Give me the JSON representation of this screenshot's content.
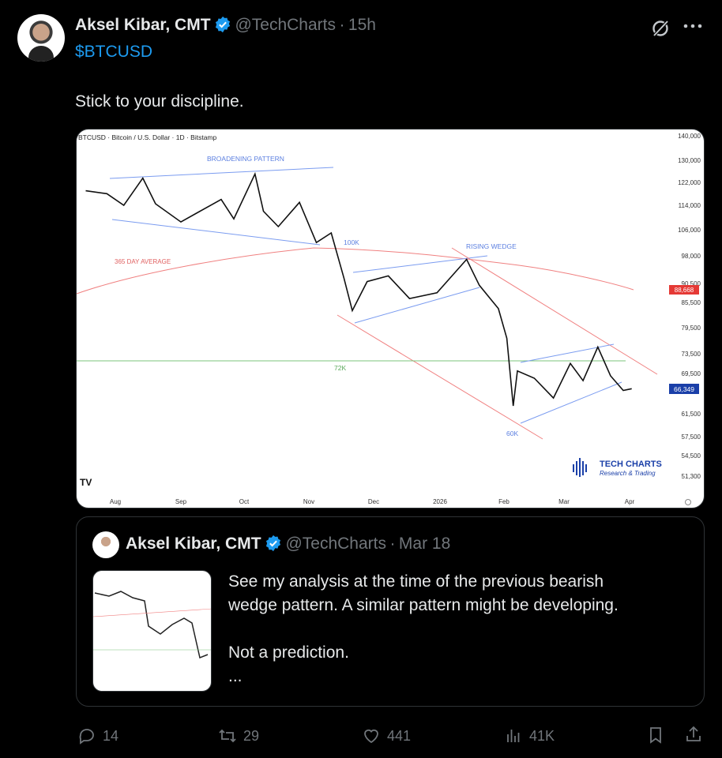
{
  "tweet": {
    "author_name": "Aksel Kibar, CMT",
    "handle": "@TechCharts",
    "time": "15h",
    "cashtag": "$BTCUSD",
    "text": "Stick to your discipline.",
    "verified_color": "#1d9bf0"
  },
  "chart_image": {
    "title": "BTCUSD · Bitcoin / U.S. Dollar · 1D · Bitstamp",
    "annotations": {
      "broadening": "BROADENING PATTERN",
      "k100": "100K",
      "rising_wedge": "RISING WEDGE",
      "ma": "365 DAY AVERAGE",
      "k72": "72K",
      "k60": "60K"
    },
    "price_ticks": [
      "140,000",
      "130,000",
      "122,000",
      "114,000",
      "106,000",
      "98,000",
      "90,500",
      "85,500",
      "79,500",
      "73,500",
      "69,500",
      "61,500",
      "57,500",
      "54,500",
      "51,300"
    ],
    "ma_label": "88,668",
    "last_price": "66,349",
    "months": [
      "Aug",
      "Sep",
      "Oct",
      "Nov",
      "Dec",
      "2026",
      "Feb",
      "Mar",
      "Apr"
    ],
    "logo_title": "TECH CHARTS",
    "logo_subtitle": "Research & Trading",
    "tv_logo": "TV",
    "colors": {
      "ma": "#f08080",
      "pattern": "#7b9cf0",
      "level72": "#7bc47b",
      "ma_badge": "#e53935",
      "price_badge": "#1a3fa8"
    },
    "prices": [
      [
        "2025-07-18",
        119000
      ],
      [
        "2025-07-28",
        118000
      ],
      [
        "2025-08-05",
        114000
      ],
      [
        "2025-08-14",
        123500
      ],
      [
        "2025-08-20",
        114500
      ],
      [
        "2025-09-01",
        108500
      ],
      [
        "2025-09-10",
        112000
      ],
      [
        "2025-09-20",
        116000
      ],
      [
        "2025-09-26",
        109500
      ],
      [
        "2025-10-06",
        125000
      ],
      [
        "2025-10-10",
        112000
      ],
      [
        "2025-10-17",
        107000
      ],
      [
        "2025-10-27",
        115000
      ],
      [
        "2025-11-04",
        102000
      ],
      [
        "2025-11-11",
        105000
      ],
      [
        "2025-11-17",
        92000
      ],
      [
        "2025-11-21",
        83500
      ],
      [
        "2025-11-28",
        91000
      ],
      [
        "2025-12-08",
        92500
      ],
      [
        "2025-12-18",
        86500
      ],
      [
        "2025-12-31",
        88000
      ],
      [
        "2026-01-14",
        97000
      ],
      [
        "2026-01-20",
        90000
      ],
      [
        "2026-01-29",
        84000
      ],
      [
        "2026-02-02",
        77000
      ],
      [
        "2026-02-05",
        63000
      ],
      [
        "2026-02-07",
        70000
      ],
      [
        "2026-02-15",
        68500
      ],
      [
        "2026-02-24",
        64500
      ],
      [
        "2026-03-04",
        71500
      ],
      [
        "2026-03-10",
        68000
      ],
      [
        "2026-03-17",
        75000
      ],
      [
        "2026-03-23",
        69000
      ],
      [
        "2026-03-29",
        66000
      ],
      [
        "2026-04-02",
        66349
      ]
    ]
  },
  "quote": {
    "author_name": "Aksel Kibar, CMT",
    "handle": "@TechCharts",
    "date": "Mar 18",
    "text": "See my analysis at the time of the previous bearish\nwedge pattern. A similar pattern might be developing.\n\nNot a prediction.\n..."
  },
  "actions": {
    "replies": "14",
    "reposts": "29",
    "likes": "441",
    "views": "41K"
  }
}
